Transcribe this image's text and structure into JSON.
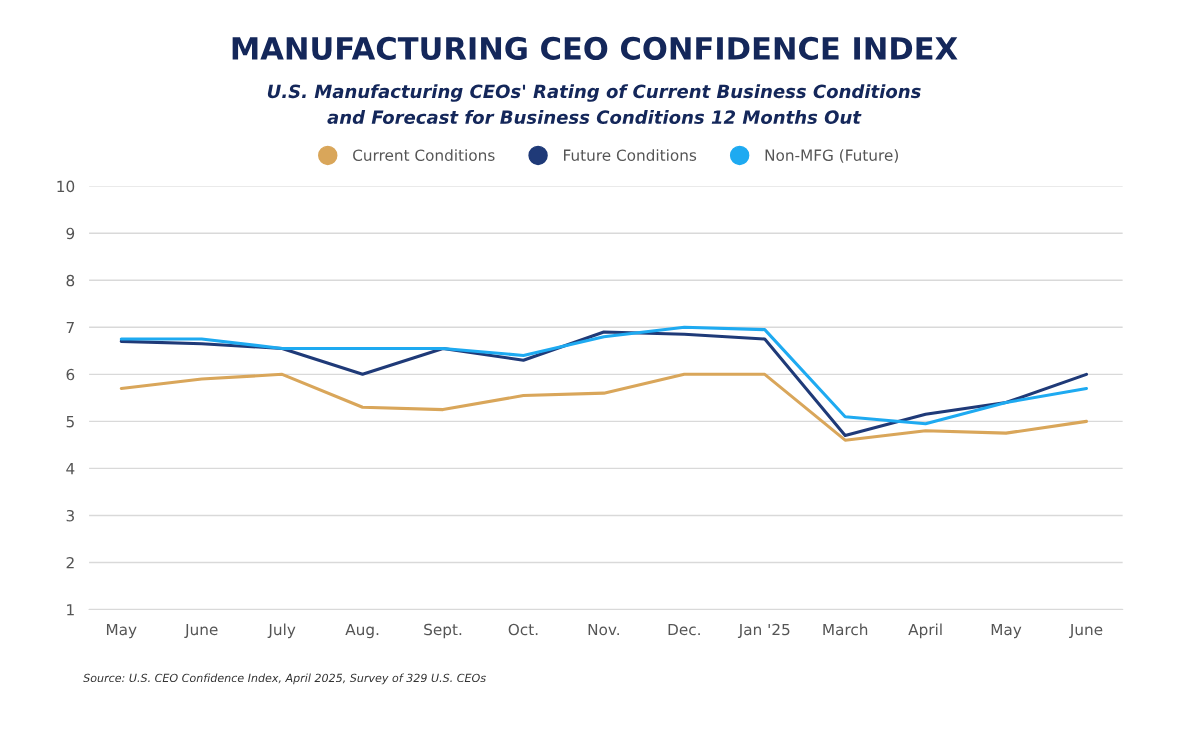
{
  "chart_data": {
    "type": "line",
    "title": "MANUFACTURING CEO CONFIDENCE INDEX",
    "subtitle": "U.S. Manufacturing CEOs' Rating of Current Business Conditions\nand Forecast for Business Conditions 12 Months Out",
    "categories": [
      "May",
      "June",
      "July",
      "Aug.",
      "Sept.",
      "Oct.",
      "Nov.",
      "Dec.",
      "Jan '25",
      "March",
      "April",
      "May",
      "June"
    ],
    "series": [
      {
        "name": "Current Conditions",
        "color": "#d9a65a",
        "values": [
          5.7,
          5.9,
          6.0,
          5.3,
          5.25,
          5.55,
          5.6,
          6.0,
          6.0,
          4.6,
          4.8,
          4.75,
          5.0
        ]
      },
      {
        "name": "Future Conditions",
        "color": "#1f3a78",
        "values": [
          6.7,
          6.65,
          6.55,
          6.0,
          6.55,
          6.3,
          6.9,
          6.85,
          6.75,
          4.7,
          5.15,
          5.4,
          6.0
        ]
      },
      {
        "name": "Non-MFG (Future)",
        "color": "#1eaaf1",
        "values": [
          6.75,
          6.75,
          6.55,
          6.55,
          6.55,
          6.4,
          6.8,
          7.0,
          6.95,
          5.1,
          4.95,
          5.4,
          5.7
        ]
      }
    ],
    "ylim": [
      1,
      10
    ],
    "yticks": [
      1,
      2,
      3,
      4,
      5,
      6,
      7,
      8,
      9,
      10
    ],
    "grid": "y",
    "legend": "top",
    "marker": "none",
    "line_style": "solid",
    "annotations": [
      "Source: U.S. CEO Confidence Index, April 2025, Survey of 329 U.S. CEOs"
    ]
  }
}
